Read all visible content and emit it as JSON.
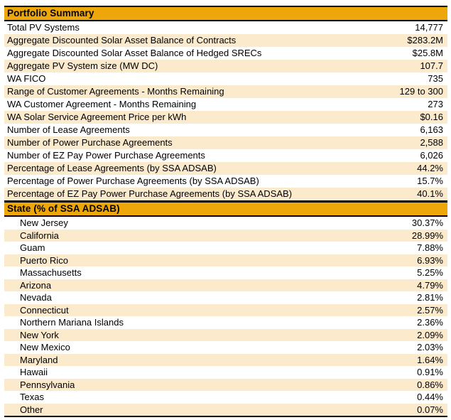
{
  "colors": {
    "header_bg": "#EEA70A",
    "row_alt_bg": "#FCEACD",
    "border": "#000000"
  },
  "portfolio_summary": {
    "title": "Portfolio Summary",
    "rows": [
      {
        "label": "Total PV Systems",
        "value": "14,777"
      },
      {
        "label": "Aggregate Discounted Solar Asset Balance of Contracts",
        "value": "$283.2M"
      },
      {
        "label": "Aggregate Discounted Solar Asset Balance of Hedged SRECs",
        "value": "$25.8M"
      },
      {
        "label": "Aggregate PV System size (MW DC)",
        "value": "107.7"
      },
      {
        "label": "WA FICO",
        "value": "735"
      },
      {
        "label": "Range of Customer Agreements - Months Remaining",
        "value": "129 to 300"
      },
      {
        "label": "WA Customer Agreement - Months Remaining",
        "value": "273"
      },
      {
        "label": "WA Solar Service Agreement Price per kWh",
        "value": "$0.16"
      },
      {
        "label": "Number of Lease Agreements",
        "value": "6,163"
      },
      {
        "label": "Number of Power Purchase Agreements",
        "value": "2,588"
      },
      {
        "label": "Number of EZ Pay Power Purchase Agreements",
        "value": "6,026"
      },
      {
        "label": "Percentage of Lease Agreements (by SSA ADSAB)",
        "value": "44.2%"
      },
      {
        "label": "Percentage of Power Purchase Agreements (by SSA ADSAB)",
        "value": "15.7%"
      },
      {
        "label": "Percentage of EZ Pay Power Purchase Agreements (by SSA ADSAB)",
        "value": "40.1%"
      }
    ]
  },
  "state_breakdown": {
    "title": "State (% of SSA ADSAB)",
    "rows": [
      {
        "label": "New Jersey",
        "value": "30.37%"
      },
      {
        "label": "California",
        "value": "28.99%"
      },
      {
        "label": "Guam",
        "value": "7.88%"
      },
      {
        "label": "Puerto Rico",
        "value": "6.93%"
      },
      {
        "label": "Massachusetts",
        "value": "5.25%"
      },
      {
        "label": "Arizona",
        "value": "4.79%"
      },
      {
        "label": "Nevada",
        "value": "2.81%"
      },
      {
        "label": "Connecticut",
        "value": "2.57%"
      },
      {
        "label": "Northern Mariana Islands",
        "value": "2.36%"
      },
      {
        "label": "New York",
        "value": "2.09%"
      },
      {
        "label": "New Mexico",
        "value": "2.03%"
      },
      {
        "label": "Maryland",
        "value": "1.64%"
      },
      {
        "label": "Hawaii",
        "value": "0.91%"
      },
      {
        "label": "Pennsylvania",
        "value": "0.86%"
      },
      {
        "label": "Texas",
        "value": "0.44%"
      },
      {
        "label": "Other",
        "value": "0.07%"
      }
    ]
  }
}
